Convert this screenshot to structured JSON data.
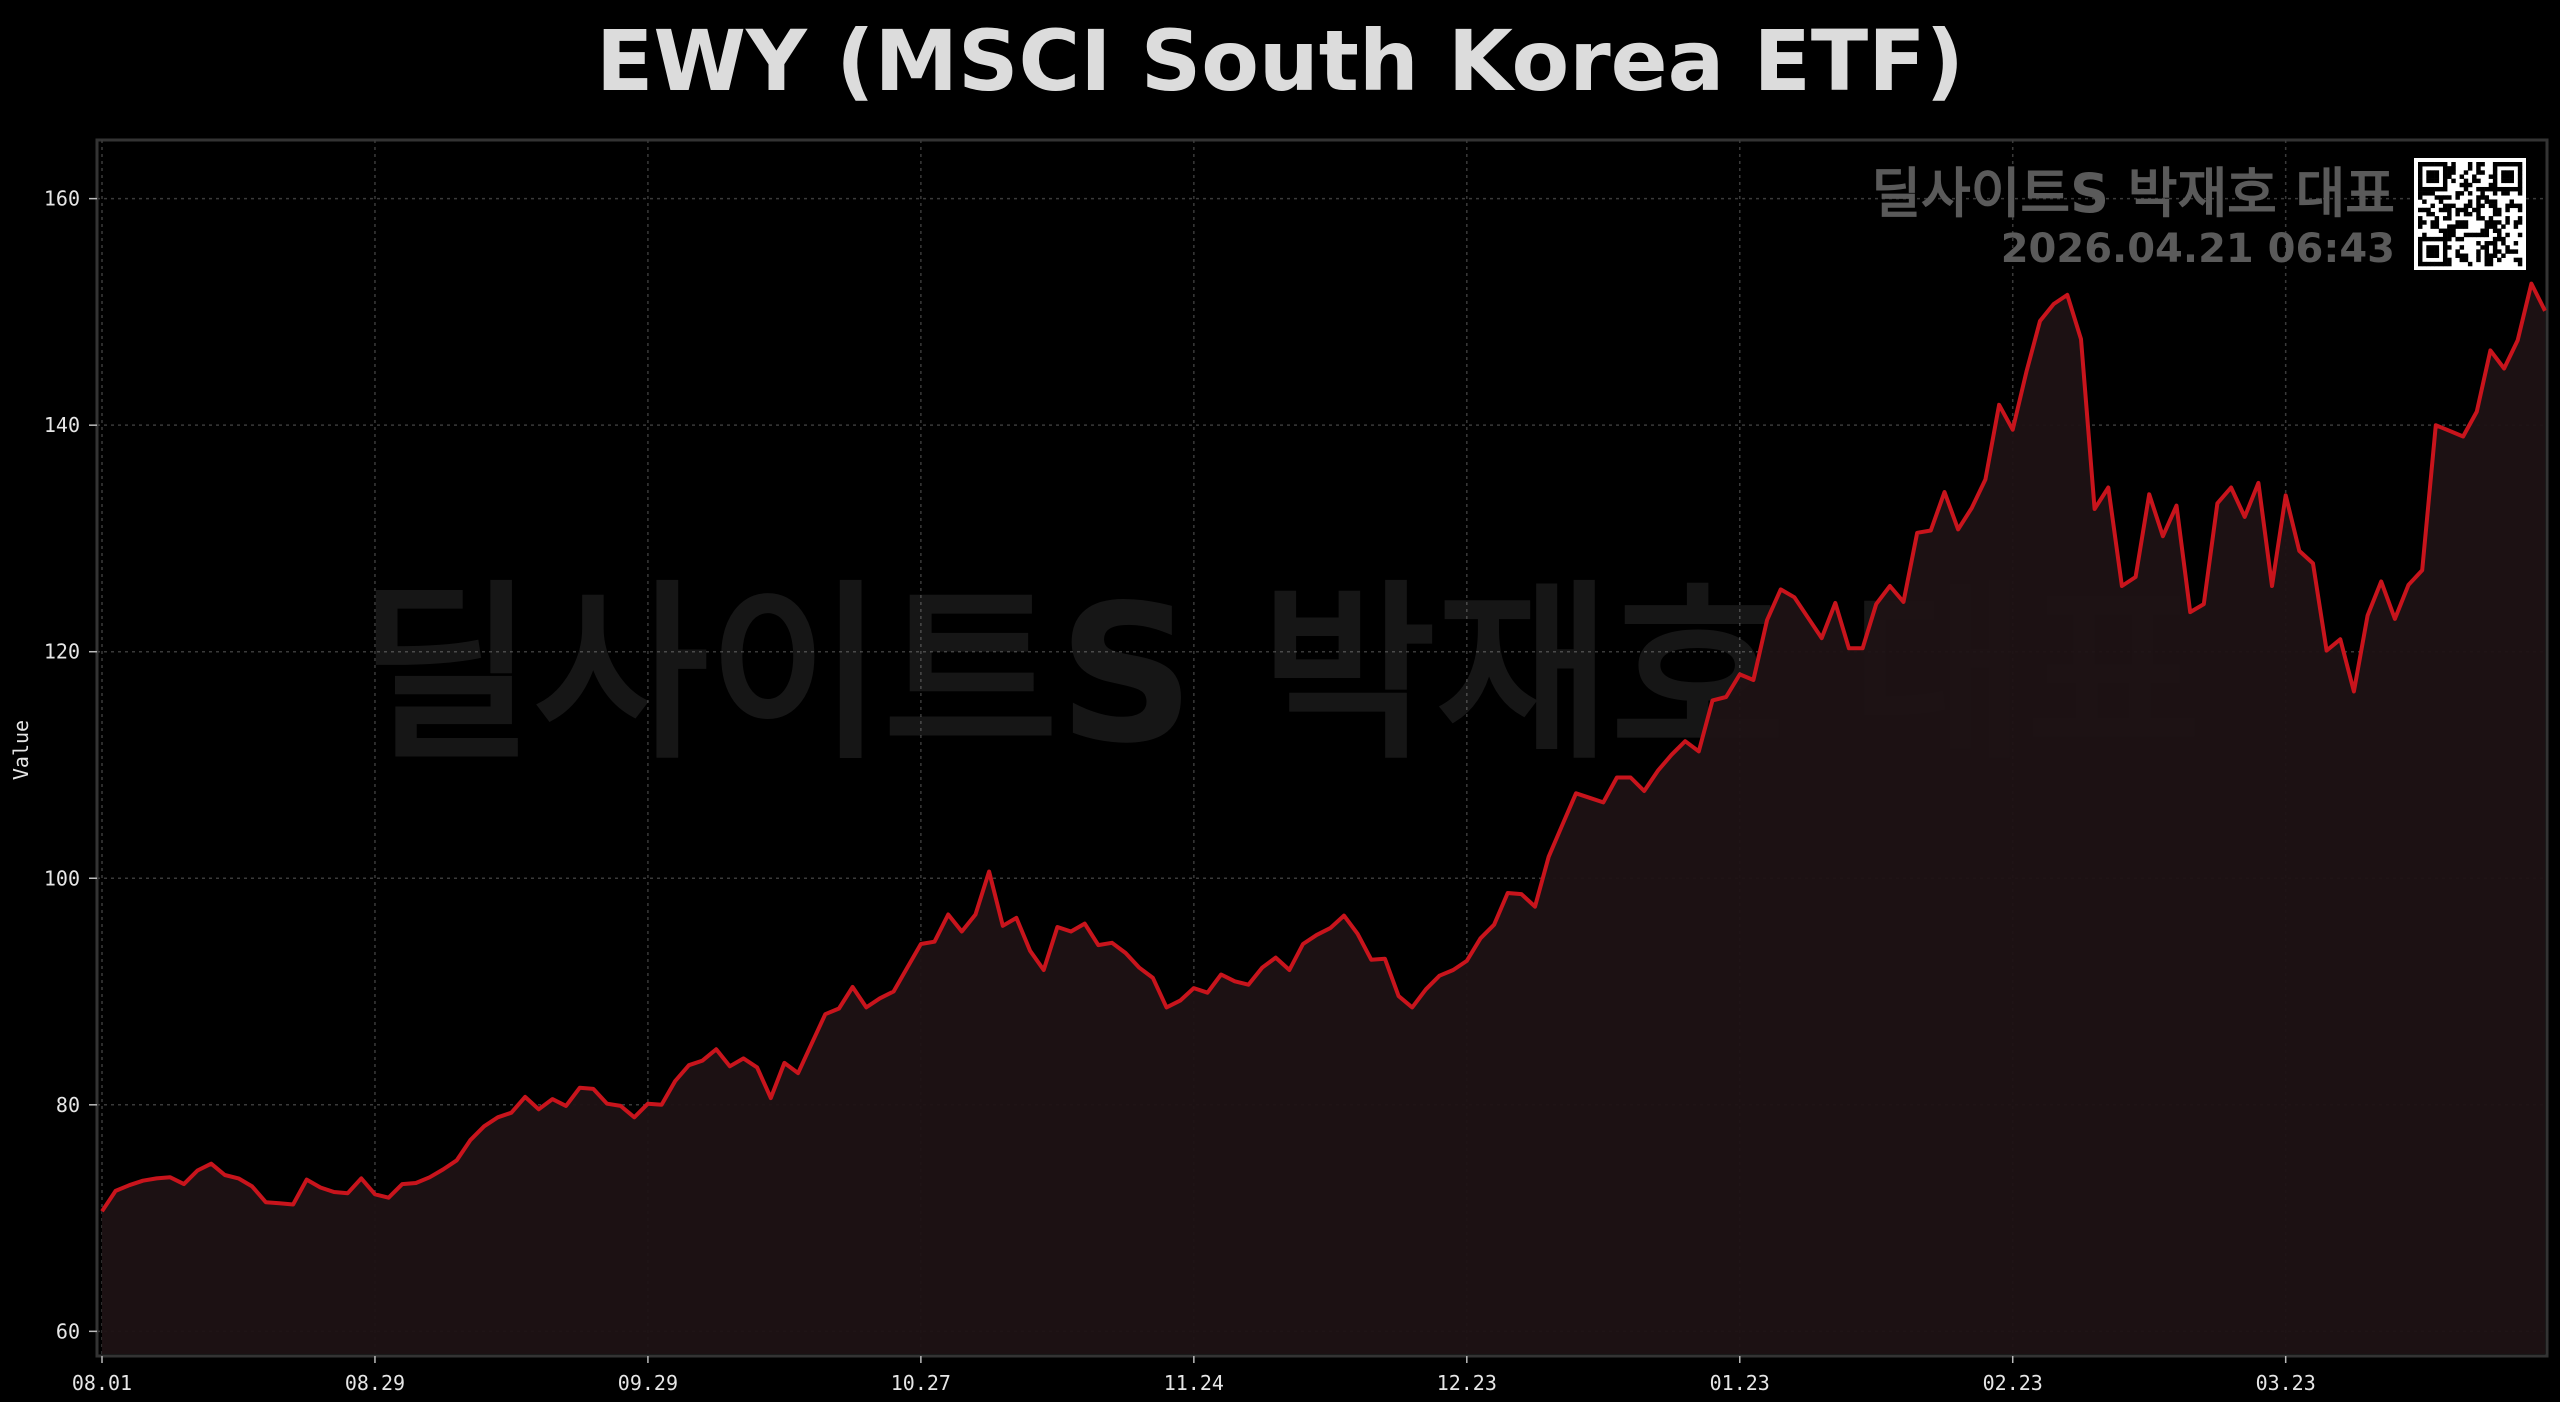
{
  "chart_data": {
    "type": "area",
    "title": "EWY (MSCI South Korea ETF)",
    "xlabel": "",
    "ylabel": "Value",
    "ylim": [
      58,
      165
    ],
    "yticks": [
      60,
      80,
      100,
      120,
      140,
      160
    ],
    "x_tick_labels": [
      "08.01",
      "08.29",
      "09.29",
      "10.27",
      "11.24",
      "12.23",
      "01.23",
      "02.23",
      "03.23"
    ],
    "x_tick_index": [
      0,
      20,
      40,
      60,
      80,
      100,
      120,
      140,
      160
    ],
    "grid": true,
    "line_color": "#c8141c",
    "fill_color": "#1e1214",
    "background": "#000000",
    "series": [
      {
        "values": [
          70.6,
          72.4,
          72.9,
          73.3,
          73.5,
          73.6,
          73.0,
          74.2,
          74.8,
          73.8,
          73.5,
          72.8,
          71.4,
          71.3,
          71.2,
          73.4,
          72.7,
          72.3,
          72.2,
          73.5,
          72.1,
          71.8,
          73.0,
          73.1,
          73.6,
          74.3,
          75.1,
          76.9,
          78.1,
          78.9,
          79.3,
          80.7,
          79.6,
          80.5,
          79.9,
          81.5,
          81.4,
          80.1,
          79.9,
          78.9,
          80.1,
          80.0,
          82.1,
          83.5,
          83.9,
          84.9,
          83.4,
          84.1,
          83.3,
          80.6,
          83.7,
          82.8,
          85.4,
          88.0,
          88.5,
          90.4,
          88.6,
          89.4,
          90.0,
          92.1,
          94.2,
          94.4,
          96.8,
          95.3,
          96.8,
          100.6,
          95.8,
          96.5,
          93.6,
          91.9,
          95.7,
          95.3,
          96.0,
          94.1,
          94.3,
          93.4,
          92.1,
          91.2,
          88.6,
          89.2,
          90.3,
          89.9,
          91.5,
          90.9,
          90.6,
          92.1,
          93.0,
          91.9,
          94.2,
          95.0,
          95.6,
          96.7,
          95.1,
          92.8,
          92.9,
          89.6,
          88.6,
          90.2,
          91.4,
          91.9,
          92.7,
          94.7,
          95.9,
          98.7,
          98.6,
          97.5,
          101.9,
          104.7,
          107.5,
          107.1,
          106.7,
          108.9,
          108.9,
          107.7,
          109.5,
          110.9,
          112.1,
          111.2,
          115.7,
          116.0,
          118.0,
          117.5,
          122.8,
          125.5,
          124.8,
          123.0,
          121.2,
          124.3,
          120.3,
          120.3,
          124.2,
          125.8,
          124.4,
          130.5,
          130.7,
          134.1,
          130.8,
          132.7,
          135.2,
          141.8,
          139.6,
          144.7,
          149.2,
          150.7,
          151.5,
          147.6,
          132.6,
          134.5,
          125.8,
          126.6,
          133.9,
          130.2,
          132.9,
          123.5,
          124.2,
          133.1,
          134.5,
          131.9,
          134.9,
          125.8,
          133.8,
          128.9,
          127.8,
          120.1,
          121.1,
          116.5,
          123.2,
          126.2,
          122.9,
          125.9,
          127.2,
          140.0,
          139.5,
          139.0,
          141.2,
          146.6,
          145.0,
          147.5,
          152.5,
          150.1
        ]
      }
    ]
  },
  "watermark": {
    "text": "딜사이트S 박재호 대표",
    "timestamp": "2026.04.21 06:43"
  },
  "qr": {
    "icon": "qr-code-icon"
  }
}
